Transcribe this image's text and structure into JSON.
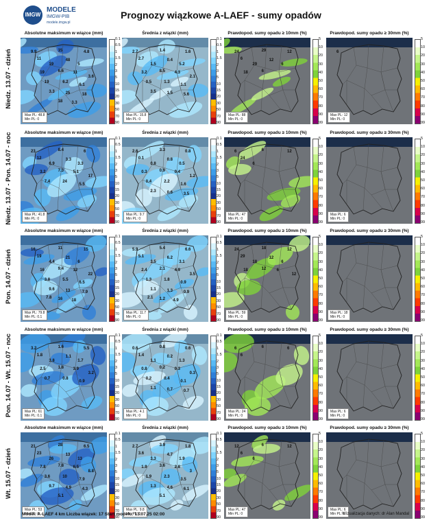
{
  "logo": {
    "org": "MODELE",
    "sub": "IMGW-PIB",
    "url": "modele.imgw.pl",
    "mark": "IMGW"
  },
  "title": "Prognozy wiązkowe A-LAEF - sumy opadów",
  "panel_titles": [
    "Absolutne maksimum w wiązce (mm)",
    "Średnia z wiązki (mm)",
    "Prawdopod. sumy opadu ≥ 10mm (%)",
    "Prawdopod. sumy opadu ≥ 30mm (%)"
  ],
  "colorbar_mm": {
    "ticks": [
      "0.1",
      "0.5",
      "1",
      "1.5",
      "2",
      "3",
      "5",
      "10",
      "15",
      "20",
      "30",
      "50",
      "70",
      "90"
    ],
    "colors": [
      "#ffffff",
      "#d8f4ff",
      "#aee8ff",
      "#7fd4ff",
      "#58baf5",
      "#3d9de8",
      "#2f7fd8",
      "#2461c4",
      "#1b45a8",
      "#16308a",
      "#ffbe00",
      "#ff8c00",
      "#e8400c",
      "#b0001e"
    ]
  },
  "colorbar_pct": {
    "ticks": [
      "5",
      "10",
      "20",
      "30",
      "40",
      "50",
      "60",
      "70",
      "80",
      "90",
      "99"
    ],
    "colors": [
      "#ffffff",
      "#e9ffc7",
      "#c6f58b",
      "#a3e857",
      "#7fd23a",
      "#f6f000",
      "#ffbb00",
      "#ff7a00",
      "#ff3a00",
      "#d8004a",
      "#8a0070"
    ]
  },
  "rows": [
    {
      "label": "Niedz. 13.07 - dzień",
      "max": {
        "stats": [
          "Max PL: 48.8",
          "Min PL: 0"
        ],
        "values": [
          "9.9",
          "15",
          "4.8",
          "11",
          "19",
          "48",
          "5",
          "19",
          "6.6",
          "11",
          "3.6",
          "19",
          "6.2",
          "6.1",
          "3.3",
          "25",
          "18",
          "18",
          "3.3"
        ]
      },
      "mean": {
        "stats": [
          "Max PL: 15.8",
          "Min PL: 0"
        ],
        "values": [
          "2.7",
          "1.4",
          "1.6",
          "2.7",
          "1.5",
          "0.4",
          "5.2",
          "3.2",
          "8.5",
          "4.3",
          "2.1",
          "0.5",
          "1.3",
          "1.1",
          "3.5",
          "1.5",
          "5.6"
        ]
      },
      "p10": {
        "stats": [
          "Max PL: 88",
          "Min PL: 0"
        ],
        "values": [
          "24",
          "29",
          "12",
          "6",
          "29",
          "12",
          "6",
          "18",
          "6"
        ]
      },
      "p30": {
        "stats": [
          "Max PL: 12",
          "Min PL: 0"
        ],
        "values": [
          "6"
        ]
      }
    },
    {
      "label": "Niedz. 13.07 - Pon. 14.07 - noc",
      "max": {
        "stats": [
          "Max PL: 41.8",
          "Min PL: 0"
        ],
        "values": [
          "23",
          "8.4",
          "6",
          "12",
          "6.9",
          "3.3",
          "3.3",
          "3.2",
          "7.3",
          "5.1",
          "17",
          "7.4",
          "24",
          "5.5"
        ]
      },
      "mean": {
        "stats": [
          "Max PL: 9.7",
          "Min PL: 0"
        ],
        "values": [
          "2.6",
          "3.3",
          "0.8",
          "0.1",
          "0.8",
          "0.8",
          "0.5",
          "0.3",
          "0.9",
          "0.4",
          "1.2",
          "0.4",
          "2.2",
          "1.6",
          "2.3",
          "0.6",
          "3.5"
        ]
      },
      "p10": {
        "stats": [
          "Max PL: 47",
          "Min PL: 0"
        ],
        "values": [
          "6",
          "6",
          "12",
          "24",
          "6"
        ]
      },
      "p30": {
        "stats": [
          "Max PL: 6",
          "Min PL: 0"
        ],
        "values": []
      }
    },
    {
      "label": "Pon. 14.07 - dzień",
      "max": {
        "stats": [
          "Max PL: 79.8",
          "Min PL: 0.1"
        ],
        "values": [
          "16",
          "11",
          "15",
          "19",
          "4.4",
          "21",
          "6",
          "16",
          "9.4",
          "12",
          "22",
          "3.8",
          "5.5",
          "6.5",
          "9.6",
          "13",
          "7.9",
          "16",
          "18",
          "7.8"
        ]
      },
      "mean": {
        "stats": [
          "Max PL: 11.7",
          "Min PL: 0"
        ],
        "values": [
          "5.9",
          "5.4",
          "6.6",
          "5.1",
          "3.5",
          "6.2",
          "3.1",
          "2.4",
          "2.1",
          "4.9",
          "3.5",
          "1.3",
          "1.8",
          "0.9",
          "1.1",
          "1.3",
          "0.9",
          "1.2",
          "4.9",
          "2.1"
        ]
      },
      "p10": {
        "stats": [
          "Max PL: 59",
          "Min PL: 0"
        ],
        "values": [
          "24",
          "18",
          "12",
          "29",
          "18",
          "12",
          "6",
          "18",
          "12",
          "6",
          "12"
        ]
      },
      "p30": {
        "stats": [
          "Max PL: 18",
          "Min PL: 0"
        ],
        "values": []
      }
    },
    {
      "label": "Pon. 14.07 - Wt. 15.07 - noc",
      "max": {
        "stats": [
          "Max PL: 61",
          "Min PL: 0.1"
        ],
        "values": [
          "3.2",
          "1.6",
          "5.5",
          "1.8",
          "3.8",
          "1.1",
          "1.7",
          "2.5",
          "1.8",
          "3.9",
          "3.2",
          "0.7",
          "0.8",
          "0.9"
        ]
      },
      "mean": {
        "stats": [
          "Max PL: 4.1",
          "Min PL: 0"
        ],
        "values": [
          "0.6",
          "0.8",
          "0.6",
          "1.4",
          "1.1",
          "0.2",
          "1.3",
          "0.8",
          "0.2",
          "0.3",
          "0.3",
          "0.2",
          "0.4",
          "0.1",
          "1.1",
          "0.7",
          "0.7"
        ]
      },
      "p10": {
        "stats": [
          "Max PL: 24",
          "Min PL: 0"
        ],
        "values": [
          "6",
          "6",
          "6",
          "6"
        ]
      },
      "p30": {
        "stats": [
          "Max PL: 6",
          "Min PL: 0"
        ],
        "values": []
      }
    },
    {
      "label": "Wt. 15.07 - dzień",
      "max": {
        "stats": [
          "Max PL: 53",
          "Min PL: 0"
        ],
        "values": [
          "21",
          "28",
          "6.5",
          "23",
          "26",
          "13",
          "13",
          "7.8",
          "7.8",
          "6.5",
          "8.8",
          "3.6",
          "10",
          "7.9",
          "9.7",
          "4.9",
          "4.3",
          "5.1"
        ]
      },
      "mean": {
        "stats": [
          "Max PL: 9.8",
          "Min PL: 0"
        ],
        "values": [
          "2.7",
          "3.9",
          "1.8",
          "3.6",
          "3.3",
          "4.7",
          "1.9",
          "1.9",
          "3.6",
          "2.8",
          "3",
          "1.9",
          "2.3",
          "3.5",
          "1.3",
          "4.6",
          "6.1",
          "5.1"
        ]
      },
      "p10": {
        "stats": [
          "Max PL: 47",
          "Min PL: 0"
        ],
        "values": [
          "12",
          "6",
          "12",
          "6",
          "6"
        ]
      },
      "p30": {
        "stats": [
          "Max PL: 6",
          "Min PL: 0"
        ],
        "values": []
      }
    }
  ],
  "footer": {
    "left": "Model: A-LAEF 4 km  Liczba wiązek: 17    Start modelu: 13.07.25 02:00",
    "right": "Wizualizacja danych: dr Alan Mandal"
  }
}
